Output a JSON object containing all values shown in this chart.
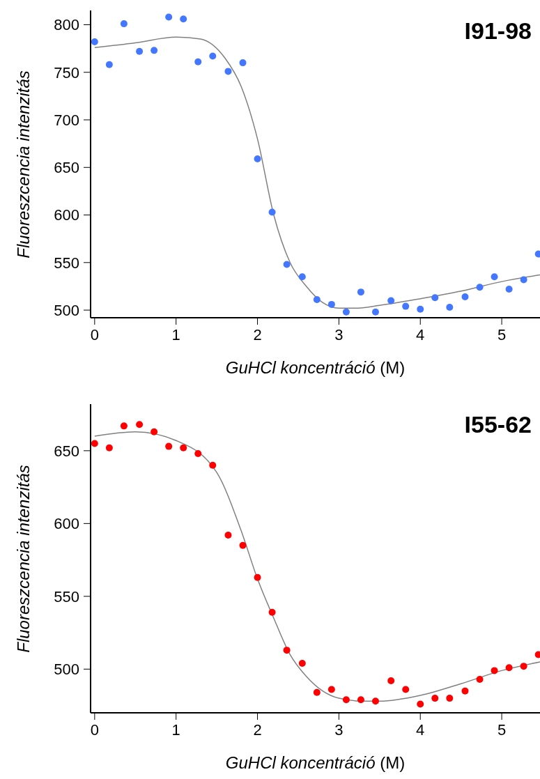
{
  "chart_data": [
    {
      "type": "scatter",
      "title": "I91-98",
      "xlabel": "GuHCl koncentráció (M)",
      "ylabel": "Fluoreszcencia intenzitás",
      "xlim": [
        -0.05,
        5.47
      ],
      "xticks": [
        0,
        1,
        2,
        3,
        4,
        5
      ],
      "ylim": [
        492,
        815
      ],
      "yticks": [
        500,
        550,
        600,
        650,
        700,
        750,
        800
      ],
      "series": [
        {
          "marker": "circle",
          "color": "#4477ff",
          "x": [
            0,
            0.18,
            0.36,
            0.55,
            0.73,
            0.91,
            1.09,
            1.27,
            1.45,
            1.64,
            1.82,
            2.0,
            2.18,
            2.36,
            2.55,
            2.73,
            2.91,
            3.09,
            3.27,
            3.45,
            3.64,
            3.82,
            4.0,
            4.18,
            4.36,
            4.55,
            4.73,
            4.91,
            5.09,
            5.27,
            5.45
          ],
          "values": [
            782,
            758,
            801,
            772,
            773,
            808,
            806,
            761,
            767,
            751,
            760,
            659,
            603,
            548,
            535,
            511,
            506,
            498,
            519,
            498,
            510,
            504,
            501,
            513,
            503,
            514,
            524,
            535,
            522,
            532,
            559
          ]
        },
        {
          "type": "line",
          "color": "#808080",
          "x": [
            0,
            0.5,
            1.0,
            1.3,
            1.6,
            1.8,
            2.0,
            2.2,
            2.4,
            2.6,
            2.8,
            3.0,
            3.2,
            3.5,
            4.0,
            4.5,
            5.0,
            5.47
          ],
          "values": [
            776,
            781,
            787,
            785,
            765,
            735,
            680,
            600,
            550,
            525,
            508,
            502,
            502,
            505,
            512,
            520,
            530,
            537
          ]
        }
      ]
    },
    {
      "type": "scatter",
      "title": "I55-62",
      "xlabel": "GuHCl koncentráció (M)",
      "ylabel": "Fluoreszcencia intenzitás",
      "xlim": [
        -0.05,
        5.47
      ],
      "xticks": [
        0,
        1,
        2,
        3,
        4,
        5
      ],
      "ylim": [
        470,
        682
      ],
      "yticks": [
        500,
        550,
        600,
        650
      ],
      "series": [
        {
          "marker": "circle",
          "color": "#ff0000",
          "x": [
            0,
            0.18,
            0.36,
            0.55,
            0.73,
            0.91,
            1.09,
            1.27,
            1.45,
            1.64,
            1.82,
            2.0,
            2.18,
            2.36,
            2.55,
            2.73,
            2.91,
            3.09,
            3.27,
            3.45,
            3.64,
            3.82,
            4.0,
            4.18,
            4.36,
            4.55,
            4.73,
            4.91,
            5.09,
            5.27,
            5.45
          ],
          "values": [
            655,
            652,
            667,
            668,
            663,
            653,
            652,
            648,
            640,
            592,
            585,
            563,
            539,
            513,
            504,
            484,
            486,
            479,
            479,
            478,
            492,
            486,
            476,
            480,
            480,
            485,
            493,
            499,
            501,
            502,
            510
          ]
        },
        {
          "type": "line",
          "color": "#808080",
          "x": [
            0,
            0.5,
            1.0,
            1.5,
            1.8,
            2.0,
            2.2,
            2.4,
            2.6,
            2.8,
            3.0,
            3.3,
            3.5,
            4.0,
            4.5,
            5.0,
            5.47
          ],
          "values": [
            660,
            663,
            657,
            635,
            595,
            562,
            535,
            510,
            495,
            485,
            480,
            478,
            478,
            482,
            490,
            499,
            505
          ]
        }
      ]
    }
  ]
}
